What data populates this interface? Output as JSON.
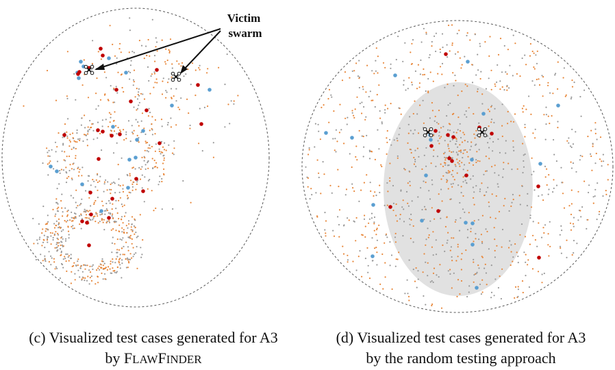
{
  "panels": [
    {
      "id": "c",
      "caption_line1": "(c) Visualized test cases generated for A3",
      "caption_line2_prefix": "by ",
      "caption_tool_F": "F",
      "caption_tool_rest1": "LAW",
      "caption_tool_F2": "F",
      "caption_tool_rest2": "INDER",
      "annotation_line1": "Victim",
      "annotation_line2": "swarm"
    },
    {
      "id": "d",
      "caption_line1": "(d) Visualized test cases generated for A3",
      "caption_line2": "by the random testing approach"
    }
  ],
  "colors": {
    "gray_point": "#9a9a9a",
    "orange_point": "#e8873a",
    "blue_point": "#5b9fd1",
    "red_point": "#c00000",
    "boundary": "#555555",
    "shaded_region": "#e1e1e1"
  }
}
